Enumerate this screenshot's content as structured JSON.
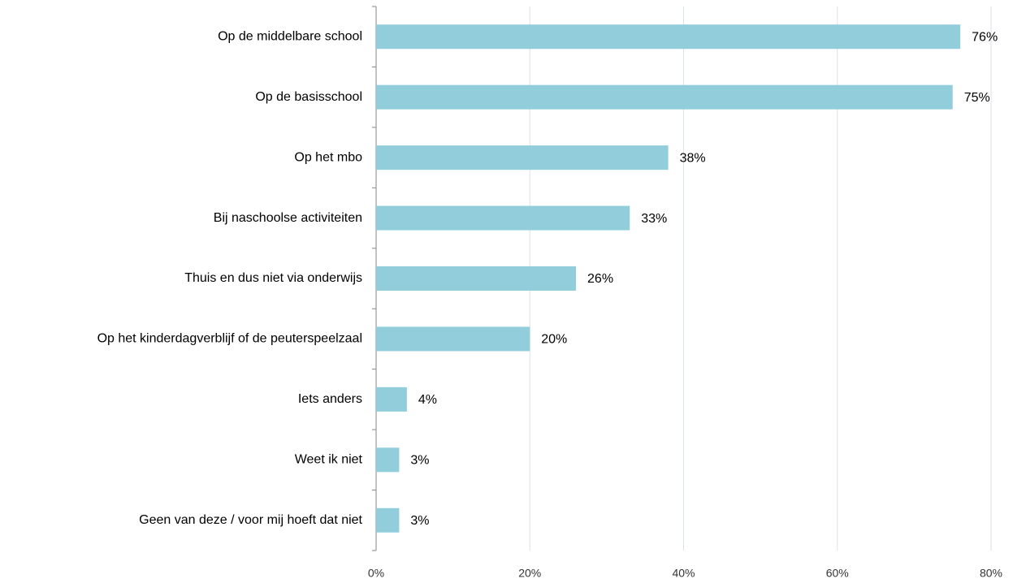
{
  "chart_data": {
    "type": "bar",
    "orientation": "horizontal",
    "categories": [
      "Op de middelbare school",
      "Op de basisschool",
      "Op het mbo",
      "Bij naschoolse activiteiten",
      "Thuis en dus niet via onderwijs",
      "Op het kinderdagverblijf of de peuterspeelzaal",
      "Iets anders",
      "Weet ik niet",
      "Geen van deze / voor mij hoeft dat niet"
    ],
    "values": [
      76,
      75,
      38,
      33,
      26,
      20,
      4,
      3,
      3
    ],
    "value_labels": [
      "76%",
      "75%",
      "38%",
      "33%",
      "26%",
      "20%",
      "4%",
      "3%",
      "3%"
    ],
    "color": "#92cddc",
    "xlim": [
      0,
      80
    ],
    "xticks": [
      {
        "value": 0,
        "label": "0%"
      },
      {
        "value": 20,
        "label": "20%"
      },
      {
        "value": 40,
        "label": "40%"
      },
      {
        "value": 60,
        "label": "60%"
      },
      {
        "value": 80,
        "label": "80%"
      }
    ],
    "grid": true
  }
}
